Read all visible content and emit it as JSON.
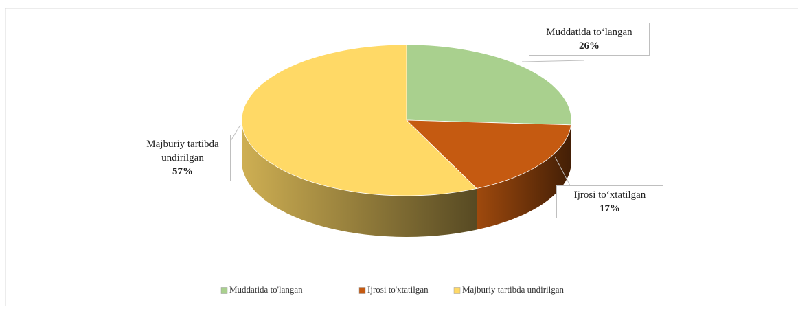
{
  "chart_data": {
    "type": "pie3d",
    "categories": [
      "Muddatida to'langan",
      "Ijrosi to'xtatilgan",
      "Majburiy tartibda undirilgan"
    ],
    "data_label_names": [
      "Muddatida to‘langan",
      "Ijrosi to‘xtatilgan",
      "Majburiy tartibda undirilgan"
    ],
    "values": [
      26,
      17,
      57
    ],
    "value_labels": [
      "26%",
      "17%",
      "57%"
    ],
    "colors": [
      "#a9d08e",
      "#c55a11",
      "#ffd966"
    ],
    "legend": "bottom"
  }
}
